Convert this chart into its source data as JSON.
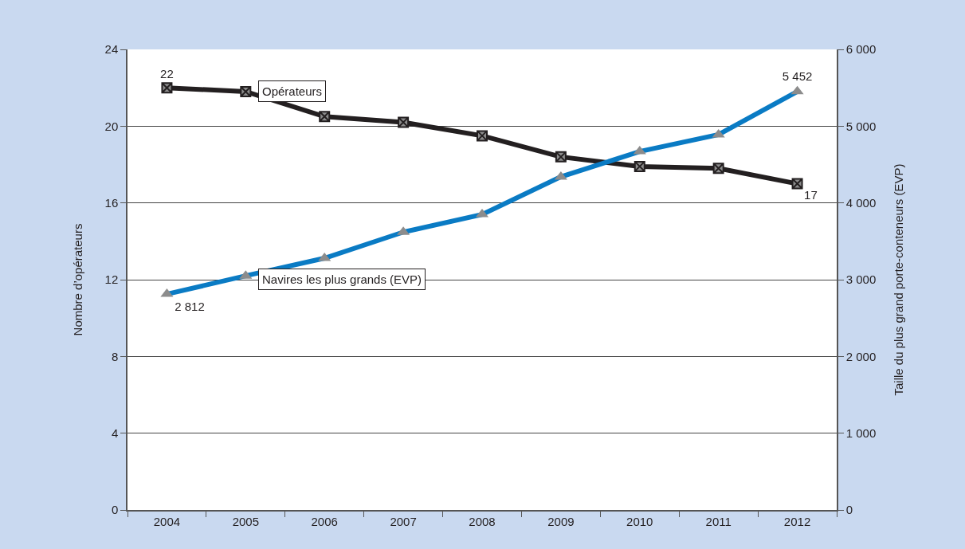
{
  "chart_data": {
    "type": "line",
    "categories": [
      "2004",
      "2005",
      "2006",
      "2007",
      "2008",
      "2009",
      "2010",
      "2011",
      "2012"
    ],
    "ylabel": "Nombre d’opérateurs",
    "y2label": "Taille du plus grand porte-conteneurs (EVP)",
    "ylim": [
      0,
      24
    ],
    "yticks": [
      0,
      4,
      8,
      12,
      16,
      20,
      24
    ],
    "y2lim": [
      0,
      6000
    ],
    "y2ticks": [
      0,
      {
        "value": 1000,
        "label": "1 000"
      },
      {
        "value": 2000,
        "label": "2 000"
      },
      {
        "value": 3000,
        "label": "3 000"
      },
      {
        "value": 4000,
        "label": "4 000"
      },
      {
        "value": 5000,
        "label": "5 000"
      },
      {
        "value": 6000,
        "label": "6 000"
      }
    ],
    "grid": "y",
    "legend": false,
    "series": [
      {
        "name": "Opérateurs",
        "color": "#231f20",
        "marker": "cross",
        "values": [
          22,
          21.8,
          20.5,
          20.2,
          19.5,
          18.4,
          17.9,
          17.8,
          17
        ],
        "value_labels": [
          "22",
          null,
          null,
          null,
          null,
          null,
          null,
          null,
          "17"
        ]
      },
      {
        "name": "Navires les plus grands (EVP)",
        "color": "#0a7bc4",
        "marker": "triangle",
        "axis": "y2",
        "values": [
          2812,
          3050,
          3280,
          3620,
          3850,
          4340,
          4670,
          4890,
          5452
        ],
        "value_labels": [
          "2 812",
          null,
          null,
          null,
          null,
          null,
          null,
          null,
          "5 452"
        ]
      }
    ]
  }
}
